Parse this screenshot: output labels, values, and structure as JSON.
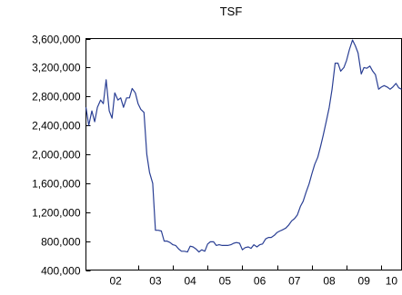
{
  "chart_data": {
    "type": "line",
    "title": "TSF",
    "xlabel": "",
    "ylabel": "",
    "ylim": [
      400000,
      3600000
    ],
    "yticks": [
      400000,
      800000,
      1200000,
      1600000,
      2000000,
      2400000,
      2800000,
      3200000,
      3600000
    ],
    "ytick_labels": [
      "400,000",
      "800,000",
      "1,200,000",
      "1,600,000",
      "2,000,000",
      "2,400,000",
      "2,800,000",
      "3,200,000",
      "3,600,000"
    ],
    "xlim": [
      2001.5,
      2010.58
    ],
    "xtick_labels": [
      "02",
      "03",
      "04",
      "05",
      "06",
      "07",
      "08",
      "09",
      "10"
    ],
    "xtick_positions": [
      2002,
      2003,
      2004,
      2005,
      2006,
      2007,
      2008,
      2009,
      2010
    ],
    "grid": false,
    "series": [
      {
        "color": "#2a3f94",
        "x": [
          2001.5,
          2001.58,
          2001.67,
          2001.75,
          2001.83,
          2001.92,
          2002.0,
          2002.08,
          2002.17,
          2002.25,
          2002.33,
          2002.42,
          2002.5,
          2002.58,
          2002.67,
          2002.75,
          2002.83,
          2002.92,
          2003.0,
          2003.08,
          2003.17,
          2003.25,
          2003.33,
          2003.42,
          2003.5,
          2003.58,
          2003.67,
          2003.75,
          2003.83,
          2003.92,
          2004.0,
          2004.08,
          2004.17,
          2004.25,
          2004.33,
          2004.42,
          2004.5,
          2004.58,
          2004.67,
          2004.75,
          2004.83,
          2004.92,
          2005.0,
          2005.08,
          2005.17,
          2005.25,
          2005.33,
          2005.42,
          2005.5,
          2005.58,
          2005.67,
          2005.75,
          2005.83,
          2005.92,
          2006.0,
          2006.08,
          2006.17,
          2006.25,
          2006.33,
          2006.42,
          2006.5,
          2006.58,
          2006.67,
          2006.75,
          2006.83,
          2006.92,
          2007.0,
          2007.08,
          2007.17,
          2007.25,
          2007.33,
          2007.42,
          2007.5,
          2007.58,
          2007.67,
          2007.75,
          2007.83,
          2007.92,
          2008.0,
          2008.08,
          2008.17,
          2008.25,
          2008.33,
          2008.42,
          2008.5,
          2008.58,
          2008.67,
          2008.75,
          2008.83,
          2008.92,
          2009.0,
          2009.08,
          2009.17,
          2009.25,
          2009.33,
          2009.42,
          2009.5,
          2009.58,
          2009.67,
          2009.75,
          2009.83,
          2009.92,
          2010.0,
          2010.08,
          2010.17,
          2010.25,
          2010.33,
          2010.42,
          2010.5,
          2010.58
        ],
        "y": [
          2650000,
          2400000,
          2600000,
          2450000,
          2650000,
          2750000,
          2700000,
          3030000,
          2600000,
          2500000,
          2850000,
          2750000,
          2780000,
          2650000,
          2780000,
          2780000,
          2910000,
          2850000,
          2700000,
          2620000,
          2580000,
          2000000,
          1750000,
          1600000,
          950000,
          950000,
          940000,
          800000,
          800000,
          780000,
          750000,
          740000,
          690000,
          660000,
          660000,
          650000,
          730000,
          720000,
          690000,
          650000,
          680000,
          660000,
          760000,
          790000,
          790000,
          740000,
          750000,
          740000,
          740000,
          740000,
          750000,
          770000,
          780000,
          770000,
          680000,
          710000,
          720000,
          700000,
          750000,
          720000,
          750000,
          760000,
          830000,
          850000,
          850000,
          880000,
          920000,
          940000,
          960000,
          980000,
          1020000,
          1080000,
          1110000,
          1160000,
          1280000,
          1350000,
          1470000,
          1590000,
          1730000,
          1860000,
          1960000,
          2110000,
          2270000,
          2470000,
          2650000,
          2900000,
          3260000,
          3260000,
          3150000,
          3200000,
          3300000,
          3450000,
          3580000,
          3500000,
          3400000,
          3110000,
          3200000,
          3190000,
          3220000,
          3150000,
          3100000,
          2900000,
          2930000,
          2950000,
          2930000,
          2900000,
          2930000,
          2980000,
          2920000,
          2900000
        ]
      }
    ]
  }
}
